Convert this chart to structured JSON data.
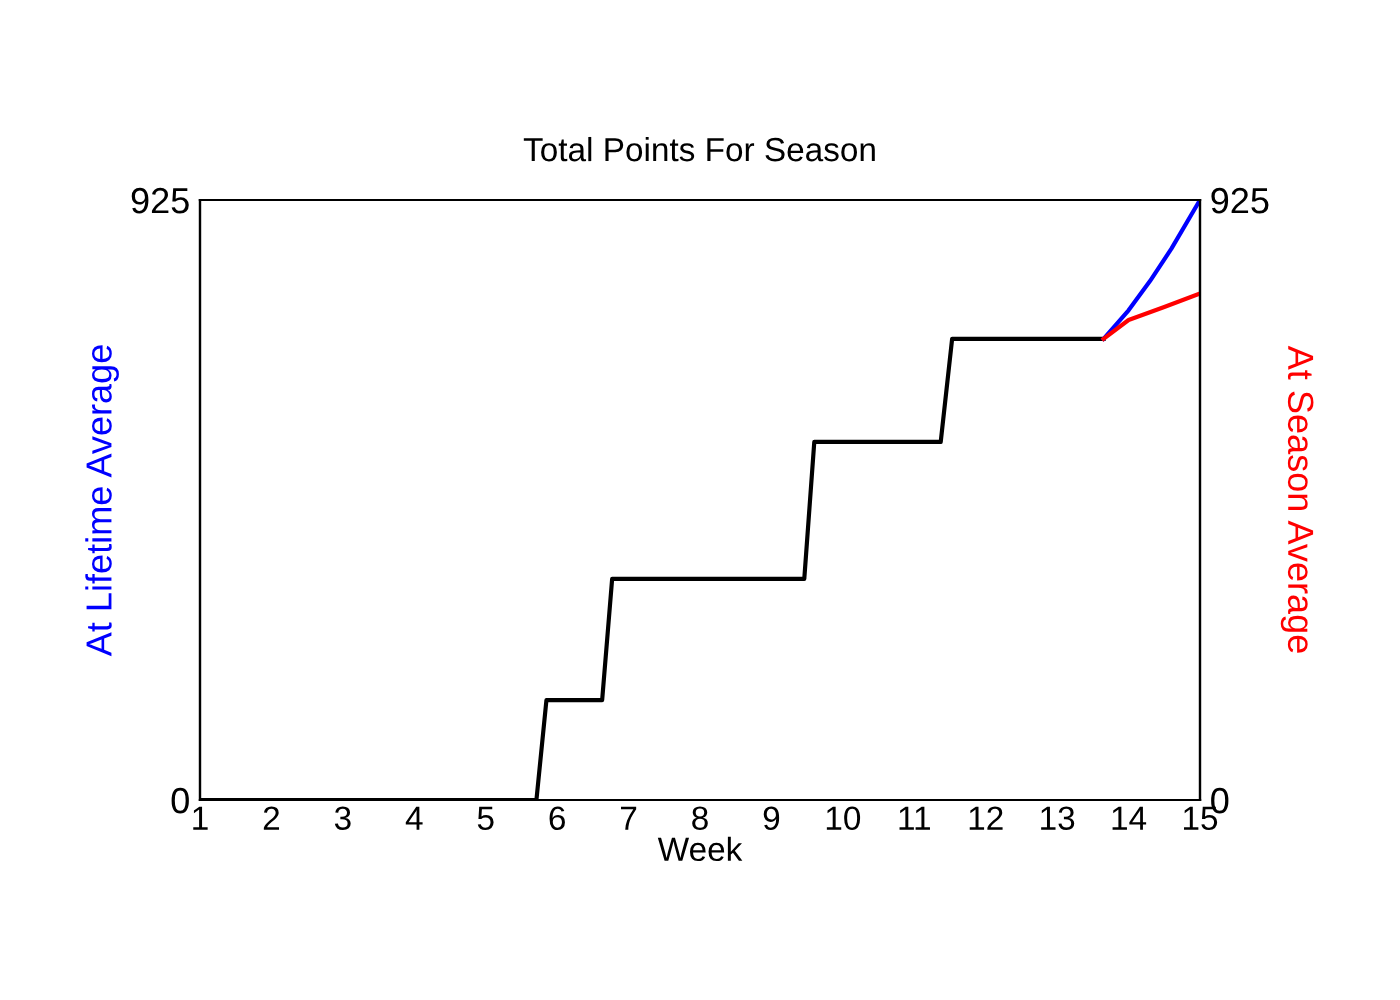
{
  "chart_data": {
    "type": "line",
    "title": "Total Points For Season",
    "xlabel": "Week",
    "ylabel": "At Lifetime Average",
    "y2label": "At Season Average",
    "series": [
      {
        "color": "#000000",
        "x": [
          1,
          5.71,
          5.85,
          6.63,
          6.77,
          9.46,
          9.6,
          11.37,
          11.53,
          13.65
        ],
        "values": [
          0,
          0,
          154,
          154,
          341,
          341,
          552,
          552,
          711,
          711
        ]
      },
      {
        "color": "#0000ff",
        "x": [
          13.65,
          14.0,
          14.3,
          14.6,
          15
        ],
        "values": [
          711,
          755,
          800,
          850,
          925
        ]
      },
      {
        "color": "#ff0000",
        "axis": "y2",
        "x": [
          13.65,
          14.0,
          14.5,
          15
        ],
        "values": [
          711,
          740,
          760,
          781
        ]
      }
    ],
    "xlim": [
      1,
      15
    ],
    "xticks": [
      1,
      2,
      3,
      4,
      5,
      6,
      7,
      8,
      9,
      10,
      11,
      12,
      13,
      14,
      15
    ],
    "ylim": [
      0,
      925
    ],
    "yticks": [
      0,
      925
    ],
    "y2lim": [
      0,
      925
    ],
    "y2ticks": [
      0,
      925
    ],
    "grid": false,
    "legend": false,
    "marker": "none",
    "line_style": "solid"
  }
}
